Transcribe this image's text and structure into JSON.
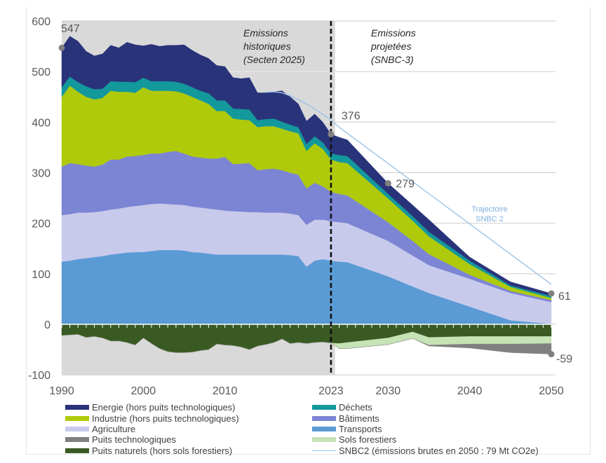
{
  "chart_data": {
    "type": "area",
    "stacked": true,
    "title": "",
    "xlabel": "",
    "ylabel": "",
    "xlim": [
      1990,
      2050
    ],
    "ylim": [
      -100,
      600
    ],
    "grid": true,
    "legend_position": "bottom",
    "y_ticks": [
      600,
      500,
      400,
      300,
      200,
      100,
      0,
      -100
    ],
    "x_ticks": [
      1990,
      2000,
      2010,
      2023,
      2030,
      2040,
      2050
    ],
    "years": [
      1990,
      1991,
      1992,
      1993,
      1994,
      1995,
      1996,
      1997,
      1998,
      1999,
      2000,
      2001,
      2002,
      2003,
      2004,
      2005,
      2006,
      2007,
      2008,
      2009,
      2010,
      2011,
      2012,
      2013,
      2014,
      2015,
      2016,
      2017,
      2018,
      2019,
      2020,
      2021,
      2022,
      2023,
      2024,
      2025,
      2030,
      2033,
      2035,
      2040,
      2045,
      2050
    ],
    "series": [
      {
        "key": "transports",
        "name": "Transports",
        "stack": "positive",
        "color": "#5b9bd5",
        "values": [
          124,
          126,
          129,
          131,
          133,
          135,
          138,
          140,
          142,
          143,
          143,
          145,
          147,
          147,
          147,
          146,
          143,
          142,
          140,
          138,
          138,
          138,
          138,
          138,
          138,
          138,
          138,
          138,
          137,
          135,
          114,
          126,
          129,
          126,
          124,
          123,
          95,
          75,
          62,
          35,
          8,
          1
        ]
      },
      {
        "key": "agriculture",
        "name": "Agriculture",
        "stack": "positive",
        "color": "#c8caec",
        "values": [
          92,
          92,
          92,
          90,
          89,
          89,
          89,
          89,
          90,
          91,
          93,
          93,
          92,
          91,
          90,
          90,
          90,
          89,
          89,
          89,
          87,
          86,
          85,
          84,
          84,
          83,
          83,
          83,
          82,
          81,
          83,
          81,
          78,
          78,
          78,
          77,
          70,
          61,
          55,
          55,
          54,
          43
        ]
      },
      {
        "key": "batiments",
        "name": "Bâtiments",
        "stack": "positive",
        "color": "#7c85d4",
        "values": [
          96,
          101,
          96,
          93,
          90,
          92,
          99,
          97,
          100,
          99,
          99,
          100,
          99,
          103,
          106,
          102,
          99,
          99,
          99,
          101,
          106,
          93,
          95,
          97,
          83,
          86,
          87,
          84,
          81,
          80,
          72,
          73,
          66,
          58,
          56,
          55,
          37,
          29,
          22,
          8,
          4,
          4
        ]
      },
      {
        "key": "industrie",
        "name": "Industrie (hors puits technologiques)",
        "stack": "positive",
        "color": "#afca0b",
        "values": [
          138,
          153,
          143,
          136,
          133,
          132,
          136,
          134,
          128,
          125,
          134,
          124,
          124,
          121,
          118,
          119,
          118,
          113,
          108,
          94,
          91,
          90,
          87,
          85,
          85,
          85,
          84,
          82,
          82,
          82,
          74,
          78,
          74,
          64,
          63,
          64,
          47,
          40,
          35,
          21,
          8,
          4
        ]
      },
      {
        "key": "dechets",
        "name": "Déchets",
        "stack": "positive",
        "color": "#13989c",
        "values": [
          19,
          18,
          19,
          21,
          20,
          18,
          19,
          20,
          20,
          21,
          19,
          19,
          19,
          19,
          19,
          19,
          19,
          19,
          21,
          21,
          21,
          20,
          21,
          21,
          14,
          14,
          15,
          14,
          13,
          12,
          14,
          14,
          13,
          12,
          14,
          14,
          9,
          9,
          9,
          7,
          3,
          4
        ]
      },
      {
        "key": "energie",
        "name": "Energie (hors puits technologiques)",
        "stack": "positive",
        "color": "#29337a",
        "values": [
          78,
          80,
          81,
          69,
          66,
          69,
          71,
          67,
          78,
          74,
          63,
          73,
          69,
          71,
          72,
          77,
          73,
          71,
          69,
          69,
          67,
          61,
          60,
          63,
          54,
          52,
          53,
          61,
          55,
          46,
          45,
          44,
          40,
          38,
          35,
          32,
          21,
          22,
          24,
          7,
          7,
          5
        ]
      },
      {
        "key": "puits_naturels",
        "name": "Puits naturels (hors sols forestiers)",
        "stack": "negative",
        "color": "#395a22",
        "values": [
          -22,
          -21,
          -20,
          -26,
          -24,
          -27,
          -33,
          -33,
          -36,
          -41,
          -27,
          -38,
          -48,
          -54,
          -56,
          -56,
          -55,
          -52,
          -50,
          -39,
          -41,
          -42,
          -45,
          -50,
          -43,
          -40,
          -36,
          -29,
          -38,
          -36,
          -38,
          -36,
          -35,
          -37,
          -38,
          -36,
          -27,
          -15,
          -26,
          -24,
          -24,
          -24
        ]
      },
      {
        "key": "sols_forestiers",
        "name": "Sols forestiers",
        "stack": "negative",
        "color": "#c5e3b5",
        "values": [
          0,
          0,
          0,
          0,
          0,
          0,
          0,
          0,
          0,
          0,
          0,
          0,
          0,
          0,
          0,
          0,
          0,
          0,
          0,
          0,
          0,
          0,
          0,
          0,
          0,
          0,
          0,
          0,
          0,
          0,
          0,
          0,
          0,
          0,
          -10,
          -12,
          -13,
          -13,
          -15,
          -15,
          -15,
          -14
        ]
      },
      {
        "key": "puits_technologiques",
        "name": "Puits technologiques",
        "stack": "negative",
        "color": "#808080",
        "values": [
          0,
          0,
          0,
          0,
          0,
          0,
          0,
          0,
          0,
          0,
          0,
          0,
          0,
          0,
          0,
          0,
          0,
          0,
          0,
          0,
          0,
          0,
          0,
          0,
          0,
          0,
          0,
          0,
          0,
          0,
          0,
          0,
          0,
          0,
          0,
          0,
          0,
          0,
          -2,
          -8,
          -17,
          -21
        ]
      }
    ],
    "line_series": [
      {
        "key": "snbc2",
        "name": "SNBC2 (émissions brutes en 2050 : 79 Mt CO2e)",
        "color": "#9dc3e6",
        "points": [
          [
            2015,
            459
          ],
          [
            2016,
            460
          ],
          [
            2017,
            458
          ],
          [
            2018,
            452
          ],
          [
            2019,
            444
          ],
          [
            2020,
            436
          ],
          [
            2021,
            426
          ],
          [
            2022,
            415
          ],
          [
            2023,
            404
          ],
          [
            2024,
            390
          ],
          [
            2050,
            79
          ]
        ]
      }
    ],
    "historical_period": [
      1990,
      2023.5
    ],
    "historical_shade_color": "#d9d9d9",
    "divider_year": 2023,
    "data_labels": [
      {
        "year": 1990,
        "value": 547,
        "text": "547"
      },
      {
        "year": 2023,
        "value": 376,
        "text": "376"
      },
      {
        "year": 2030,
        "value": 279,
        "text": "279"
      },
      {
        "year": 2050,
        "value": 61,
        "text": "61"
      },
      {
        "year": 2050,
        "value": -59,
        "text": "-59"
      }
    ],
    "annotations": {
      "historical": [
        "Emissions",
        "historiques",
        "(Secten 2025)"
      ],
      "projected": [
        "Emissions",
        "projetées",
        "(SNBC-3)"
      ],
      "snbc2_trajectory": [
        "Trajectoire",
        "SNBC 2"
      ]
    },
    "unit": "Mt CO2e"
  },
  "legend": {
    "left": [
      {
        "label": "Energie (hors puits technologiques)",
        "color": "#29337a",
        "kind": "area"
      },
      {
        "label": "Industrie (hors puits technologiques)",
        "color": "#afca0b",
        "kind": "area"
      },
      {
        "label": "Agriculture",
        "color": "#c8caec",
        "kind": "area"
      },
      {
        "label": "Puits technologiques",
        "color": "#808080",
        "kind": "area"
      },
      {
        "label": "Puits naturels (hors sols forestiers)",
        "color": "#395a22",
        "kind": "area"
      }
    ],
    "right": [
      {
        "label": "Déchets",
        "color": "#13989c",
        "kind": "area"
      },
      {
        "label": "Bâtiments",
        "color": "#7c85d4",
        "kind": "area"
      },
      {
        "label": "Transports",
        "color": "#5b9bd5",
        "kind": "area"
      },
      {
        "label": "Sols forestiers",
        "color": "#c5e3b5",
        "kind": "area"
      },
      {
        "label": "SNBC2 (émissions brutes en 2050 : 79 Mt CO2e)",
        "color": "#9dc3e6",
        "kind": "line"
      }
    ]
  }
}
